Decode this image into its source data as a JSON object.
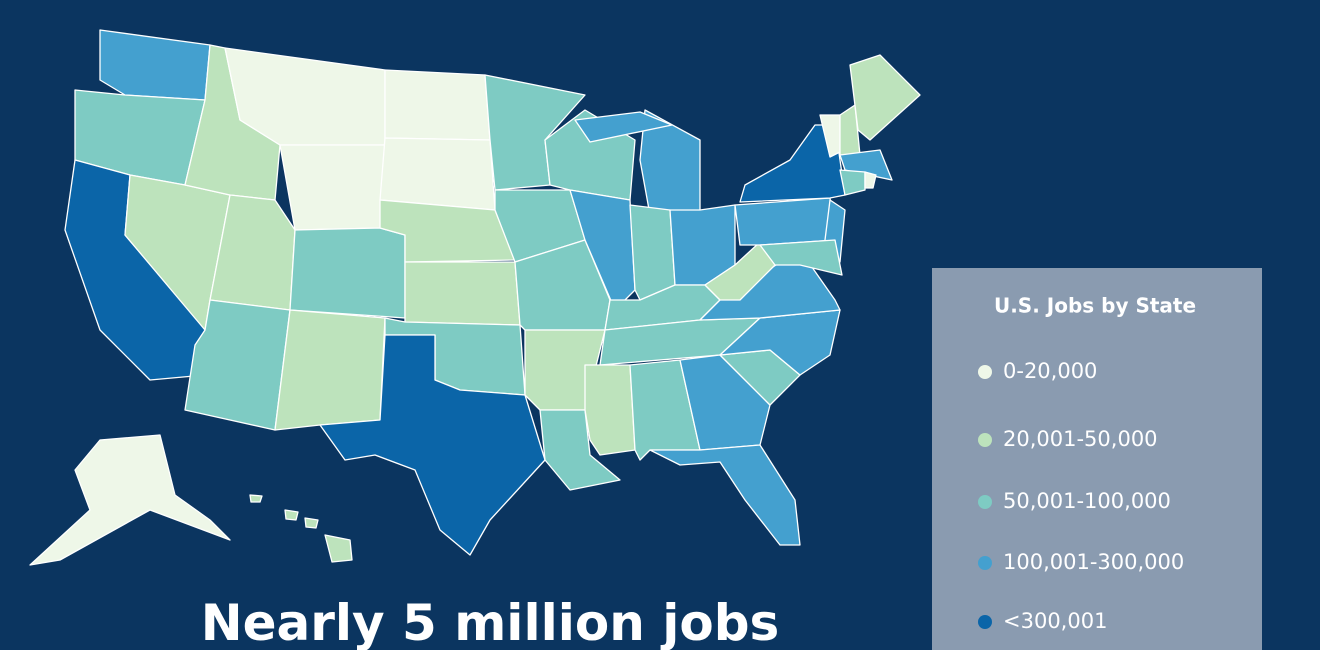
{
  "legend": {
    "title": "U.S. Jobs by State",
    "items": [
      {
        "label": "0-20,000",
        "color": "#eef7e8"
      },
      {
        "label": "20,001-50,000",
        "color": "#bde3bc"
      },
      {
        "label": "50,001-100,000",
        "color": "#7ecbc3"
      },
      {
        "label": "100,001-300,000",
        "color": "#44a0cf"
      },
      {
        "label": "<300,001",
        "color": "#0b65a8"
      }
    ]
  },
  "headline": "Nearly 5 million jobs"
}
